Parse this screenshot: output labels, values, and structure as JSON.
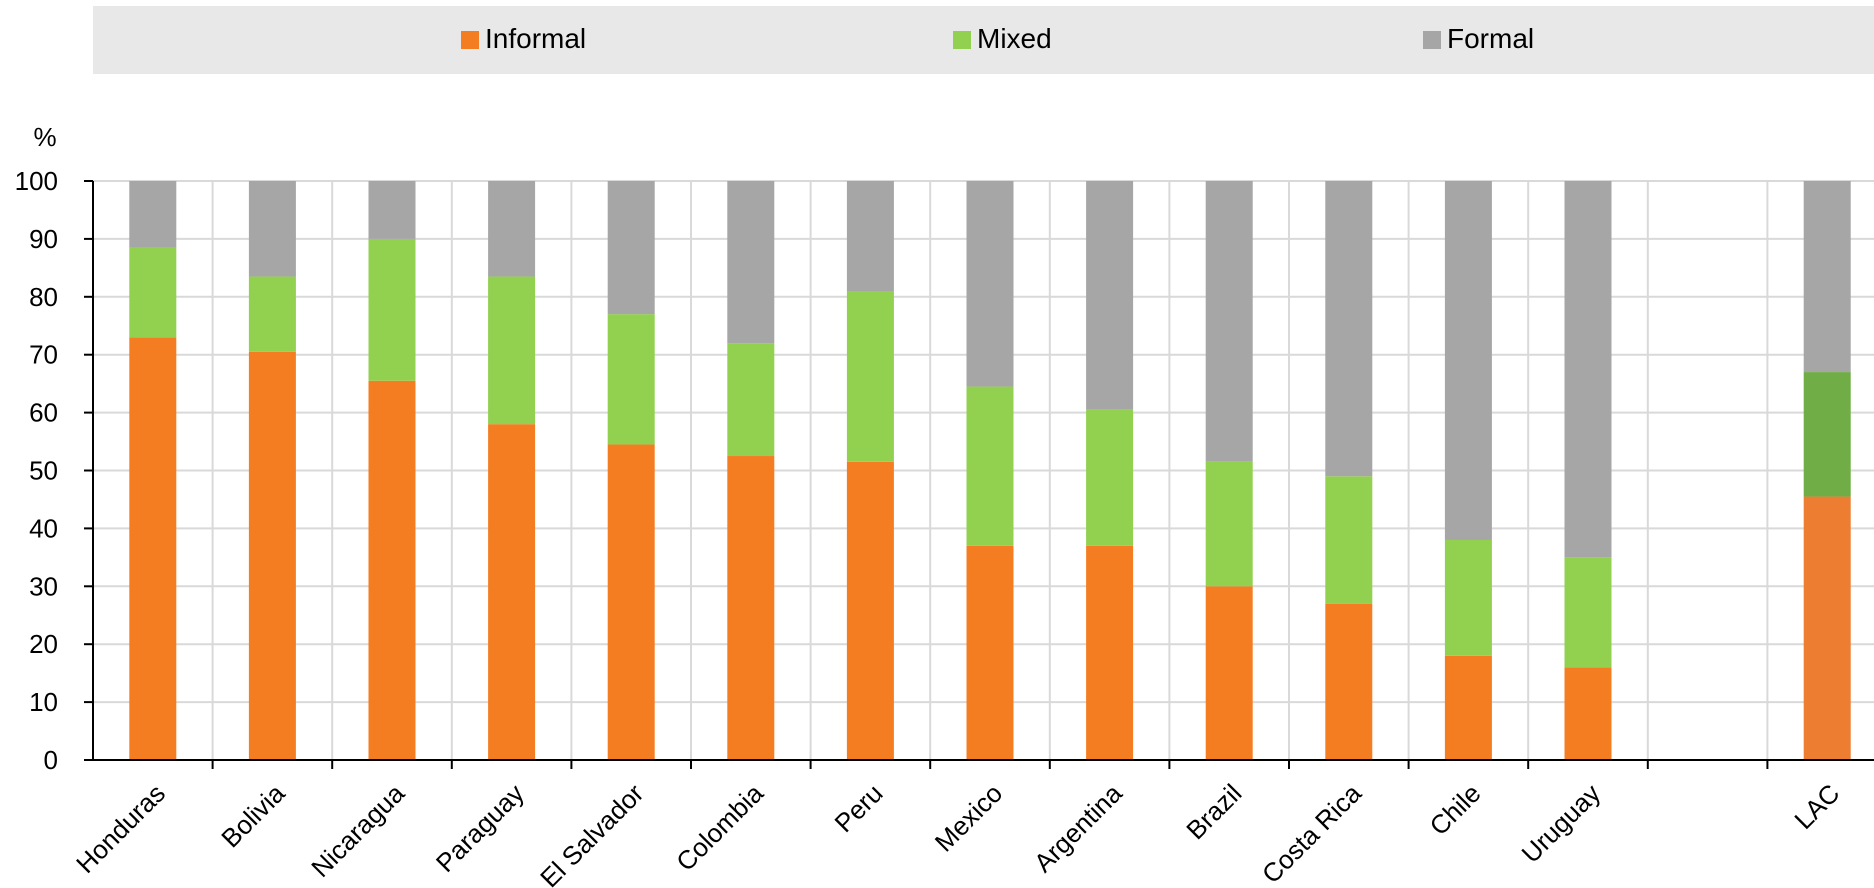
{
  "chart_data": {
    "type": "bar",
    "stacked": true,
    "title": "",
    "xlabel": "",
    "ylabel": "%",
    "ylim": [
      0,
      100
    ],
    "yticks": [
      0,
      10,
      20,
      30,
      40,
      50,
      60,
      70,
      80,
      90,
      100
    ],
    "grid": true,
    "legend_position": "top",
    "categories": [
      "Honduras",
      "Bolivia",
      "Nicaragua",
      "Paraguay",
      "El Salvador",
      "Colombia",
      "Peru",
      "Mexico",
      "Argentina",
      "Brazil",
      "Costa Rica",
      "Chile",
      "Uruguay",
      "LAC"
    ],
    "gap_after_index": 12,
    "series": [
      {
        "name": "Informal",
        "color": "#F47D22",
        "values": [
          73,
          70.5,
          65.5,
          58,
          54.5,
          52.5,
          51.5,
          37,
          37,
          30,
          27,
          18,
          16,
          45.5
        ]
      },
      {
        "name": "Mixed",
        "color": "#92D050",
        "values": [
          15.5,
          13,
          24.5,
          25.5,
          22.5,
          19.5,
          29.5,
          27.5,
          23.5,
          21.5,
          22,
          20,
          19,
          21.5
        ]
      },
      {
        "name": "Formal",
        "color": "#A6A6A6",
        "values": [
          11.5,
          16.5,
          10,
          16.5,
          23,
          28,
          19,
          35.5,
          39.5,
          48.5,
          51,
          62,
          65,
          33
        ]
      }
    ],
    "highlight": {
      "category": "LAC",
      "colors": {
        "Informal": "#ED7D31",
        "Mixed": "#70AD47",
        "Formal": "#A6A6A6"
      }
    }
  }
}
